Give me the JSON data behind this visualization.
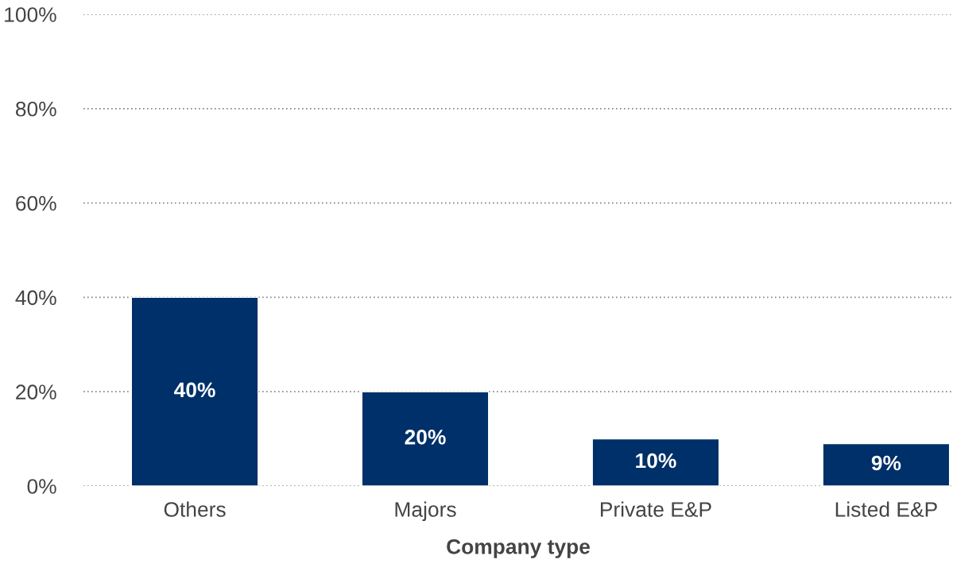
{
  "chart_data": {
    "type": "bar",
    "xlabel": "Company type",
    "categories": [
      "Others",
      "Majors",
      "Private E&P",
      "Listed E&P"
    ],
    "values": [
      40,
      20,
      10,
      9
    ],
    "color": "#003069",
    "ylim": [
      0,
      100
    ],
    "yticks": [
      {
        "value": 0,
        "label": "0%"
      },
      {
        "value": 20,
        "label": "20%"
      },
      {
        "value": 40,
        "label": "40%"
      },
      {
        "value": 60,
        "label": "60%"
      },
      {
        "value": 80,
        "label": "80%"
      },
      {
        "value": 100,
        "label": "100%"
      }
    ],
    "value_labels": [
      "40%",
      "20%",
      "10%",
      "9%"
    ],
    "grid": "y"
  }
}
